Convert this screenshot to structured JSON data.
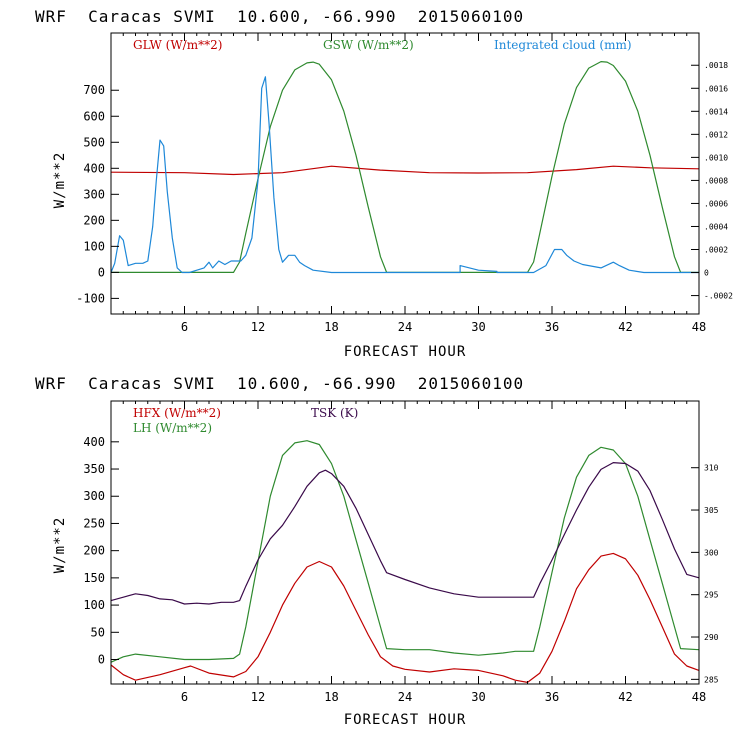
{
  "chart_data": [
    {
      "type": "line",
      "title": "WRF  Caracas SVMI  10.600, -66.990  2015060100",
      "xlabel": "FORECAST HOUR",
      "ylabel": "W/m**2",
      "xlim": [
        0,
        48
      ],
      "ylim": [
        -160,
        920
      ],
      "x_ticks": [
        6,
        12,
        18,
        24,
        30,
        36,
        42,
        48
      ],
      "y_ticks": [
        -100,
        0,
        100,
        200,
        300,
        400,
        500,
        600,
        700
      ],
      "right_ylim": [
        -0.00036,
        0.00208
      ],
      "right_ticks": [
        "-.0002",
        "0",
        ".0002",
        ".0004",
        ".0006",
        ".0008",
        ".0010",
        ".0012",
        ".0014",
        ".0016",
        ".0018"
      ],
      "right_tick_values": [
        -0.0002,
        0,
        0.0002,
        0.0004,
        0.0006,
        0.0008,
        0.001,
        0.0012,
        0.0014,
        0.0016,
        0.0018
      ],
      "series": [
        {
          "name": "GLW (W/m**2)",
          "color": "#c00000",
          "axis": "left",
          "x": [
            0,
            6,
            10,
            14,
            18,
            22,
            26,
            30,
            34,
            38,
            41,
            44,
            48
          ],
          "values": [
            385,
            383,
            376,
            383,
            408,
            393,
            383,
            382,
            383,
            395,
            408,
            402,
            398
          ]
        },
        {
          "name": "GSW (W/m**2)",
          "color": "#2f8a2f",
          "axis": "left",
          "x": [
            0,
            10,
            10.5,
            11,
            12,
            13,
            14,
            15,
            16,
            16.5,
            17,
            18,
            19,
            20,
            21,
            22,
            22.5,
            34,
            34.5,
            35,
            36,
            37,
            38,
            39,
            40,
            40.5,
            41,
            42,
            43,
            44,
            45,
            46,
            46.5,
            48
          ],
          "values": [
            0,
            0,
            40,
            150,
            360,
            560,
            700,
            778,
            805,
            808,
            800,
            740,
            620,
            450,
            250,
            60,
            0,
            0,
            40,
            150,
            370,
            570,
            710,
            785,
            810,
            808,
            795,
            735,
            620,
            450,
            250,
            60,
            0,
            0
          ]
        },
        {
          "name": "Integrated cloud (mm)",
          "color": "#1e88d8",
          "axis": "right",
          "x": [
            0,
            0.3,
            0.7,
            1.0,
            1.4,
            2.0,
            2.6,
            3.0,
            3.4,
            3.7,
            4.0,
            4.3,
            4.6,
            5.0,
            5.4,
            5.8,
            6.0,
            6.4,
            7.0,
            7.6,
            8.0,
            8.3,
            8.8,
            9.3,
            9.8,
            10.2,
            10.6,
            11.0,
            11.5,
            12.0,
            12.3,
            12.6,
            12.9,
            13.3,
            13.7,
            14.0,
            14.5,
            15.0,
            15.4,
            15.8,
            16.5,
            18.0,
            19.0,
            28.5,
            28.5,
            30,
            31.5,
            31.5,
            34.5,
            35.5,
            36.2,
            36.8,
            37.2,
            37.8,
            38.5,
            40.0,
            41.0,
            41.5,
            42.3,
            43.5,
            48
          ],
          "values": [
            0,
            8e-05,
            0.00032,
            0.00028,
            6e-05,
            8e-05,
            8e-05,
            0.0001,
            0.0004,
            0.0008,
            0.00115,
            0.0011,
            0.0007,
            0.0003,
            4e-05,
            0,
            0,
            0,
            2e-05,
            4e-05,
            9e-05,
            4e-05,
            0.0001,
            7e-05,
            0.0001,
            0.0001,
            0.0001,
            0.00015,
            0.0003,
            0.0008,
            0.0016,
            0.0017,
            0.0013,
            0.00065,
            0.0002,
            9e-05,
            0.00015,
            0.00015,
            9e-05,
            6e-05,
            2e-05,
            0,
            0,
            0,
            6e-05,
            2e-05,
            1e-05,
            0,
            0,
            6e-05,
            0.0002,
            0.0002,
            0.00015,
            0.0001,
            7e-05,
            4e-05,
            9e-05,
            6e-05,
            2e-05,
            0,
            0
          ]
        }
      ]
    },
    {
      "type": "line",
      "title": "WRF  Caracas SVMI  10.600, -66.990  2015060100",
      "xlabel": "FORECAST HOUR",
      "ylabel": "W/m**2",
      "xlim": [
        0,
        48
      ],
      "ylim": [
        -45,
        475
      ],
      "x_ticks": [
        6,
        12,
        18,
        24,
        30,
        36,
        42,
        48
      ],
      "y_ticks": [
        0,
        50,
        100,
        150,
        200,
        250,
        300,
        350,
        400
      ],
      "right_ylim": [
        284.45,
        317.88
      ],
      "right_ticks": [
        "285",
        "290",
        "295",
        "300",
        "305",
        "310"
      ],
      "right_tick_values": [
        285,
        290,
        295,
        300,
        305,
        310
      ],
      "series": [
        {
          "name": "HFX (W/m**2)",
          "color": "#c00000",
          "axis": "left",
          "x": [
            0,
            1,
            2,
            4,
            6,
            6.5,
            8,
            10,
            11,
            12,
            13,
            14,
            15,
            16,
            17,
            18,
            19,
            20,
            21,
            22,
            23,
            24,
            26,
            28,
            30,
            32,
            33,
            34,
            35,
            36,
            37,
            38,
            39,
            40,
            41,
            42,
            43,
            44,
            45,
            46,
            47,
            48
          ],
          "values": [
            -10,
            -28,
            -38,
            -28,
            -15,
            -12,
            -25,
            -32,
            -22,
            5,
            50,
            100,
            140,
            170,
            180,
            170,
            135,
            90,
            45,
            5,
            -12,
            -18,
            -23,
            -17,
            -20,
            -30,
            -38,
            -42,
            -25,
            15,
            70,
            130,
            165,
            190,
            195,
            185,
            155,
            110,
            60,
            10,
            -12,
            -20
          ]
        },
        {
          "name": "LH (W/m**2)",
          "color": "#2f8a2f",
          "axis": "left",
          "x": [
            0,
            1,
            2,
            4,
            6,
            8,
            10,
            10.5,
            11,
            12,
            13,
            14,
            15,
            16,
            17,
            18,
            19,
            20,
            21,
            22,
            22.5,
            24,
            26,
            28,
            30,
            32,
            33,
            34,
            34.5,
            35,
            36,
            37,
            38,
            39,
            40,
            41,
            42,
            43,
            44,
            45,
            46,
            46.5,
            48
          ],
          "values": [
            -5,
            5,
            10,
            5,
            0,
            0,
            2,
            10,
            60,
            180,
            300,
            375,
            398,
            402,
            395,
            360,
            300,
            220,
            140,
            60,
            20,
            18,
            18,
            12,
            8,
            12,
            15,
            15,
            15,
            60,
            160,
            260,
            335,
            375,
            390,
            385,
            360,
            300,
            220,
            140,
            60,
            20,
            18
          ]
        },
        {
          "name": "TSK (K)",
          "color": "#3a0a4a",
          "axis": "right",
          "x": [
            0,
            1,
            2,
            3,
            4,
            5,
            6,
            7,
            8,
            9,
            10,
            10.5,
            11,
            12,
            13,
            14,
            15,
            16,
            17,
            17.5,
            18,
            19,
            20,
            21,
            22,
            22.5,
            24,
            26,
            28,
            30,
            32,
            33,
            34,
            34.5,
            35,
            36,
            37,
            38,
            39,
            40,
            41,
            42,
            43,
            44,
            45,
            46,
            47,
            48
          ],
          "values": [
            294.3,
            294.7,
            295.1,
            294.9,
            294.5,
            294.4,
            293.9,
            294.0,
            293.9,
            294.1,
            294.1,
            294.3,
            296.0,
            299.1,
            301.6,
            303.2,
            305.4,
            307.8,
            309.4,
            309.7,
            309.3,
            307.8,
            305.2,
            302.1,
            299.0,
            297.6,
            296.8,
            295.8,
            295.1,
            294.7,
            294.7,
            294.7,
            294.7,
            294.7,
            296.3,
            299.1,
            302.1,
            305.0,
            307.7,
            309.8,
            310.6,
            310.5,
            309.6,
            307.3,
            303.9,
            300.4,
            297.4,
            297.0
          ]
        }
      ]
    }
  ]
}
